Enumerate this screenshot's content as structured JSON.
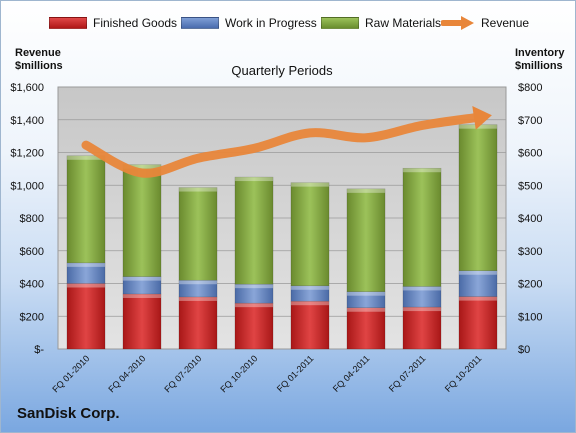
{
  "chart_data": {
    "type": "bar",
    "subtitle": "Quarterly Periods",
    "categories": [
      "FQ 01-2010",
      "FQ 04-2010",
      "FQ 07-2010",
      "FQ 10-2010",
      "FQ 01-2011",
      "FQ 04-2011",
      "FQ 07-2011",
      "FQ 10-2011"
    ],
    "series": [
      {
        "name": "Finished Goods",
        "axis": "right",
        "color": "#cc2222",
        "values": [
          200,
          168,
          159,
          140,
          146,
          126,
          128,
          160
        ]
      },
      {
        "name": "Work in Progress",
        "axis": "right",
        "color": "#5b7fc1",
        "values": [
          63,
          53,
          51,
          58,
          47,
          49,
          63,
          79
        ]
      },
      {
        "name": "Raw Materials",
        "axis": "right",
        "color": "#7fa33d",
        "values": [
          327,
          342,
          283,
          327,
          315,
          314,
          361,
          446
        ]
      },
      {
        "name": "Revenue",
        "axis": "left",
        "type": "line",
        "color": "#e8863a",
        "values": [
          1245,
          1075,
          1165,
          1225,
          1320,
          1290,
          1365,
          1415
        ]
      }
    ],
    "left_axis": {
      "title_line1": "Revenue",
      "title_line2": "$millions",
      "ylim": [
        0,
        1600
      ],
      "ticks": [
        "$-",
        "$200",
        "$400",
        "$600",
        "$800",
        "$1,000",
        "$1,200",
        "$1,400",
        "$1,600"
      ]
    },
    "right_axis": {
      "title_line1": "Inventory",
      "title_line2": "$millions",
      "ylim": [
        0,
        800
      ],
      "ticks": [
        "$0",
        "$100",
        "$200",
        "$300",
        "$400",
        "$500",
        "$600",
        "$700",
        "$800"
      ]
    },
    "stacked": true,
    "grid": true,
    "legend_position": "top"
  },
  "branding": {
    "company": "SanDisk Corp."
  }
}
